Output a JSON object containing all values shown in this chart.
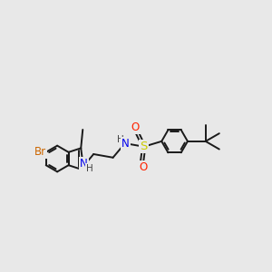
{
  "bg_color": "#e8e8e8",
  "bond_color": "#1a1a1a",
  "bond_width": 1.4,
  "atom_colors": {
    "Br": "#cc6600",
    "N": "#0000ee",
    "S": "#cccc00",
    "O": "#ff2200",
    "H": "#444444",
    "C": "#1a1a1a"
  },
  "fig_size": [
    3.0,
    3.0
  ],
  "dpi": 100
}
